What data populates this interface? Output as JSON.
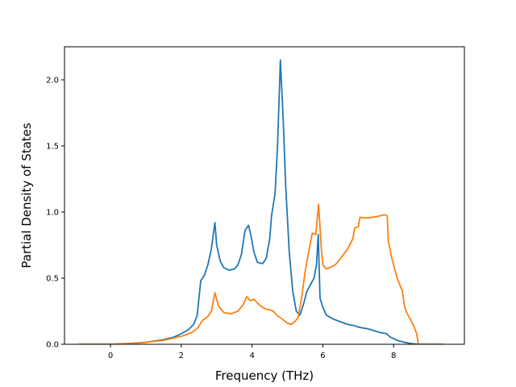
{
  "chart_data": {
    "type": "line",
    "title": "",
    "xlabel": "Frequency (THz)",
    "ylabel": "Partial Density of States",
    "xlim": [
      -1.3,
      10.0
    ],
    "ylim": [
      0.0,
      2.25
    ],
    "xticks": [
      0,
      2,
      4,
      6,
      8
    ],
    "yticks": [
      0.0,
      0.5,
      1.0,
      1.5,
      2.0
    ],
    "xtick_labels": [
      "0",
      "2",
      "4",
      "6",
      "8"
    ],
    "ytick_labels": [
      "0.0",
      "0.5",
      "1.0",
      "1.5",
      "2.0"
    ],
    "grid": false,
    "legend": "none",
    "series": [
      {
        "color": "#1f77b4",
        "points": [
          [
            -0.9,
            0.0
          ],
          [
            0.0,
            0.0
          ],
          [
            0.5,
            0.005
          ],
          [
            1.0,
            0.015
          ],
          [
            1.5,
            0.035
          ],
          [
            1.8,
            0.055
          ],
          [
            2.0,
            0.08
          ],
          [
            2.2,
            0.11
          ],
          [
            2.35,
            0.15
          ],
          [
            2.45,
            0.22
          ],
          [
            2.55,
            0.48
          ],
          [
            2.65,
            0.52
          ],
          [
            2.75,
            0.6
          ],
          [
            2.85,
            0.72
          ],
          [
            2.95,
            0.92
          ],
          [
            3.0,
            0.75
          ],
          [
            3.1,
            0.63
          ],
          [
            3.2,
            0.58
          ],
          [
            3.35,
            0.56
          ],
          [
            3.5,
            0.57
          ],
          [
            3.6,
            0.6
          ],
          [
            3.7,
            0.68
          ],
          [
            3.8,
            0.86
          ],
          [
            3.9,
            0.9
          ],
          [
            3.97,
            0.82
          ],
          [
            4.05,
            0.7
          ],
          [
            4.15,
            0.62
          ],
          [
            4.3,
            0.61
          ],
          [
            4.4,
            0.65
          ],
          [
            4.5,
            0.8
          ],
          [
            4.55,
            0.97
          ],
          [
            4.65,
            1.14
          ],
          [
            4.72,
            1.5
          ],
          [
            4.8,
            2.15
          ],
          [
            4.88,
            1.7
          ],
          [
            4.95,
            1.2
          ],
          [
            5.05,
            0.7
          ],
          [
            5.15,
            0.4
          ],
          [
            5.25,
            0.25
          ],
          [
            5.35,
            0.22
          ],
          [
            5.45,
            0.3
          ],
          [
            5.55,
            0.4
          ],
          [
            5.65,
            0.45
          ],
          [
            5.75,
            0.5
          ],
          [
            5.82,
            0.6
          ],
          [
            5.87,
            0.83
          ],
          [
            5.92,
            0.35
          ],
          [
            6.0,
            0.28
          ],
          [
            6.1,
            0.22
          ],
          [
            6.3,
            0.19
          ],
          [
            6.5,
            0.17
          ],
          [
            6.7,
            0.15
          ],
          [
            6.9,
            0.14
          ],
          [
            7.0,
            0.13
          ],
          [
            7.3,
            0.115
          ],
          [
            7.6,
            0.09
          ],
          [
            7.8,
            0.08
          ],
          [
            7.9,
            0.055
          ],
          [
            8.1,
            0.03
          ],
          [
            8.3,
            0.015
          ],
          [
            8.5,
            0.005
          ],
          [
            8.7,
            0.0
          ],
          [
            9.4,
            0.0
          ]
        ]
      },
      {
        "color": "#ff7f0e",
        "points": [
          [
            -0.9,
            0.0
          ],
          [
            0.0,
            0.0
          ],
          [
            0.5,
            0.005
          ],
          [
            1.0,
            0.015
          ],
          [
            1.5,
            0.03
          ],
          [
            2.0,
            0.06
          ],
          [
            2.3,
            0.09
          ],
          [
            2.45,
            0.12
          ],
          [
            2.6,
            0.18
          ],
          [
            2.75,
            0.21
          ],
          [
            2.85,
            0.25
          ],
          [
            2.95,
            0.39
          ],
          [
            3.05,
            0.29
          ],
          [
            3.2,
            0.24
          ],
          [
            3.4,
            0.23
          ],
          [
            3.6,
            0.25
          ],
          [
            3.75,
            0.3
          ],
          [
            3.85,
            0.36
          ],
          [
            3.95,
            0.33
          ],
          [
            4.05,
            0.34
          ],
          [
            4.2,
            0.3
          ],
          [
            4.35,
            0.27
          ],
          [
            4.5,
            0.26
          ],
          [
            4.6,
            0.25
          ],
          [
            4.7,
            0.22
          ],
          [
            4.85,
            0.19
          ],
          [
            5.0,
            0.16
          ],
          [
            5.1,
            0.15
          ],
          [
            5.2,
            0.17
          ],
          [
            5.3,
            0.2
          ],
          [
            5.4,
            0.35
          ],
          [
            5.5,
            0.55
          ],
          [
            5.6,
            0.7
          ],
          [
            5.7,
            0.84
          ],
          [
            5.8,
            0.83
          ],
          [
            5.88,
            1.06
          ],
          [
            5.95,
            0.75
          ],
          [
            6.0,
            0.6
          ],
          [
            6.1,
            0.57
          ],
          [
            6.2,
            0.58
          ],
          [
            6.35,
            0.6
          ],
          [
            6.5,
            0.65
          ],
          [
            6.7,
            0.72
          ],
          [
            6.85,
            0.8
          ],
          [
            6.9,
            0.88
          ],
          [
            7.0,
            0.89
          ],
          [
            7.05,
            0.96
          ],
          [
            7.2,
            0.955
          ],
          [
            7.4,
            0.96
          ],
          [
            7.6,
            0.97
          ],
          [
            7.75,
            0.98
          ],
          [
            7.82,
            0.97
          ],
          [
            7.85,
            0.78
          ],
          [
            7.95,
            0.65
          ],
          [
            8.1,
            0.5
          ],
          [
            8.25,
            0.4
          ],
          [
            8.3,
            0.3
          ],
          [
            8.35,
            0.25
          ],
          [
            8.45,
            0.2
          ],
          [
            8.55,
            0.15
          ],
          [
            8.65,
            0.08
          ],
          [
            8.7,
            0.0
          ],
          [
            9.4,
            0.0
          ]
        ]
      }
    ]
  }
}
